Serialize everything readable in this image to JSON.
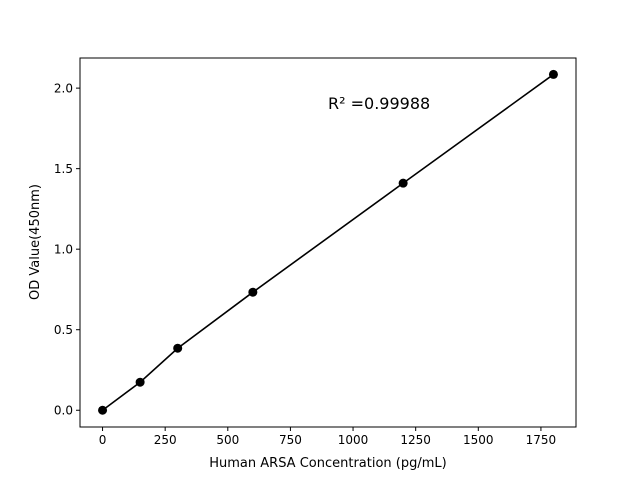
{
  "chart_data": {
    "type": "line",
    "title": "",
    "xlabel": "Human ARSA Concentration (pg/mL)",
    "ylabel": "OD Value(450nm)",
    "xlim": [
      -90,
      1890
    ],
    "ylim": [
      -0.104,
      2.187
    ],
    "xticks": [
      0,
      250,
      500,
      750,
      1000,
      1250,
      1500,
      1750
    ],
    "xtick_labels": [
      "0",
      "250",
      "500",
      "750",
      "1000",
      "1250",
      "1500",
      "1750"
    ],
    "yticks": [
      0.0,
      0.5,
      1.0,
      1.5,
      2.0
    ],
    "ytick_labels": [
      "0.0",
      "0.5",
      "1.0",
      "1.5",
      "2.0"
    ],
    "grid": false,
    "series": [
      {
        "x": [
          0,
          150,
          300,
          600,
          1200,
          1800
        ],
        "y": [
          0.0,
          0.174,
          0.385,
          0.733,
          1.41,
          2.085
        ],
        "color": "#000000",
        "marker": "circle"
      }
    ],
    "annotations": [
      {
        "text": "R² =0.99988",
        "x": 900,
        "y": 1.87
      }
    ]
  }
}
